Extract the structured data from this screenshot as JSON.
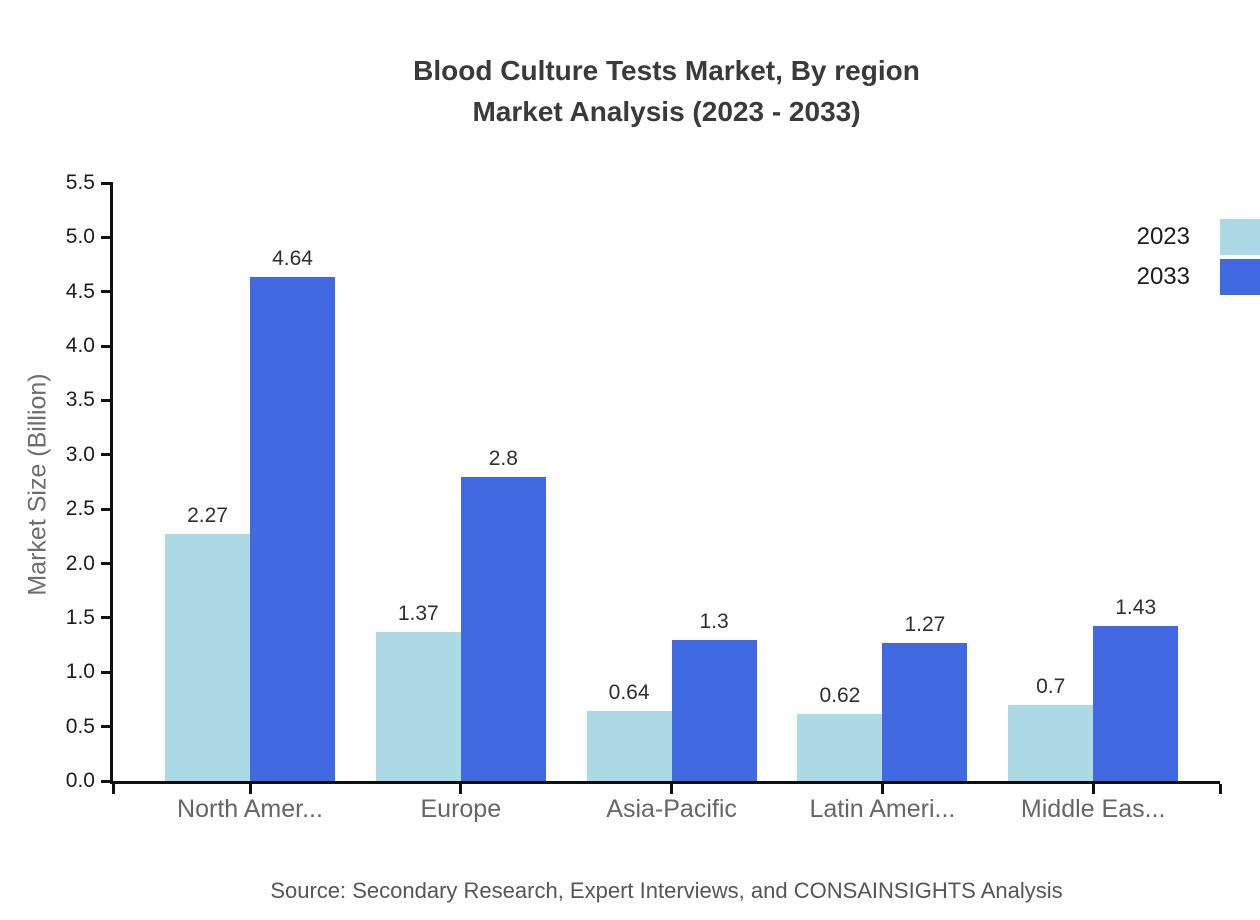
{
  "title": {
    "line1": "Blood Culture Tests Market, By region",
    "line2": "Market Analysis (2023 - 2033)"
  },
  "chart_data": {
    "type": "bar",
    "title": "Blood Culture Tests Market, By region — Market Analysis (2023 - 2033)",
    "categories": [
      "North Amer...",
      "Europe",
      "Asia-Pacific",
      "Latin Ameri...",
      "Middle Eas..."
    ],
    "series": [
      {
        "name": "2023",
        "color": "#add8e6",
        "values": [
          2.27,
          1.37,
          0.64,
          0.62,
          0.7
        ]
      },
      {
        "name": "2033",
        "color": "#4169e1",
        "values": [
          4.64,
          2.8,
          1.3,
          1.27,
          1.43
        ]
      }
    ],
    "xlabel": "",
    "ylabel": "Market Size (Billion)",
    "ylim": [
      0,
      5.5
    ],
    "ytick_step": 0.5,
    "grid": false,
    "legend_position": "top-right",
    "value_labels": true
  },
  "footer": {
    "source": "Source: Secondary Research, Expert Interviews, and CONSAINSIGHTS Analysis"
  }
}
